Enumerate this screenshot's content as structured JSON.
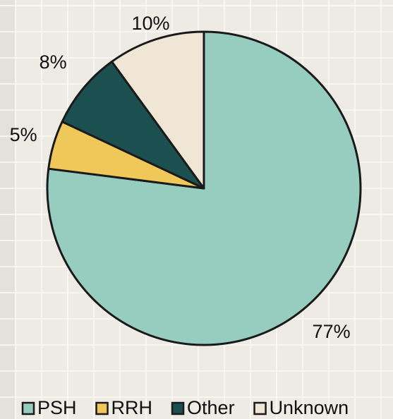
{
  "chart_data": {
    "type": "pie",
    "categories": [
      "PSH",
      "RRH",
      "Other",
      "Unknown"
    ],
    "values": [
      77,
      5,
      8,
      10
    ],
    "value_labels": [
      "77%",
      "5%",
      "8%",
      "10%"
    ],
    "colors": [
      "#96cdbf",
      "#f0c85a",
      "#1c5050",
      "#efe6d6"
    ],
    "legend": "bottom"
  }
}
